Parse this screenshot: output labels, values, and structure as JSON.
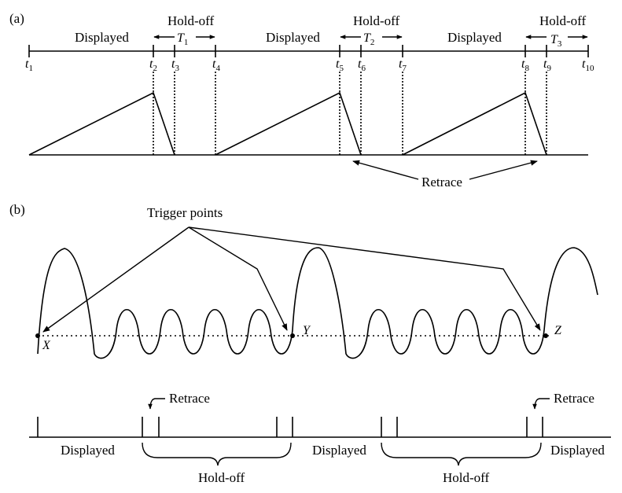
{
  "panel_a": {
    "label": "(a)",
    "displayed_label": "Displayed",
    "holdoff_label": "Hold-off",
    "retrace_label": "Retrace",
    "period_labels": [
      "T",
      "T",
      "T"
    ],
    "period_subs": [
      "1",
      "2",
      "3"
    ],
    "time_labels": [
      "t",
      "t",
      "t",
      "t",
      "t",
      "t",
      "t",
      "t",
      "t",
      "t"
    ],
    "time_subs": [
      "1",
      "2",
      "3",
      "4",
      "5",
      "6",
      "7",
      "8",
      "9",
      "10"
    ]
  },
  "panel_b": {
    "label": "(b)",
    "trigger_label": "Trigger points",
    "points": [
      "X",
      "Y",
      "Z"
    ],
    "displayed_label": "Displayed",
    "holdoff_label": "Hold-off",
    "retrace_label": "Retrace"
  }
}
